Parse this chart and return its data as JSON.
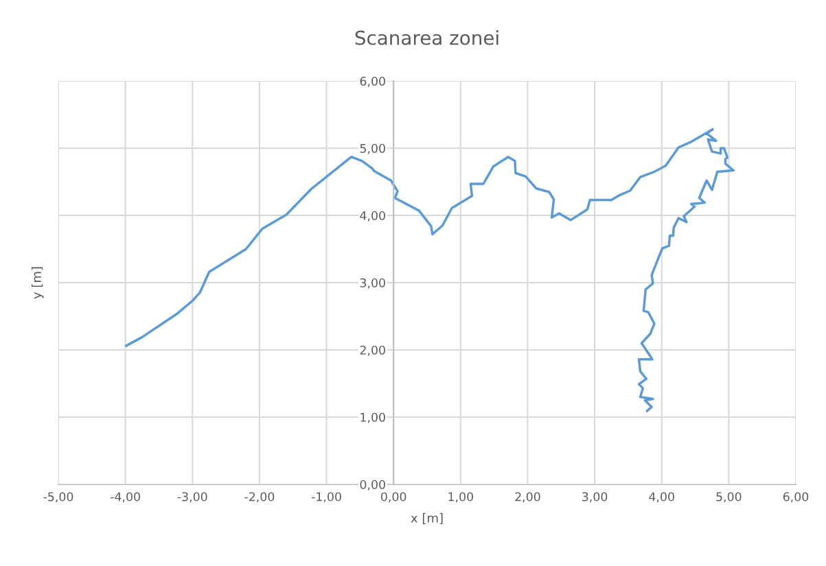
{
  "chart_data": {
    "type": "line",
    "title": "Scanarea zonei",
    "xlabel": "x [m]",
    "ylabel": "y [m]",
    "series": [
      {
        "color": "#5b9bd5",
        "x": [
          -3.99,
          -3.75,
          -3.24,
          -3.0,
          -2.89,
          -2.75,
          -2.2,
          -1.96,
          -1.6,
          -1.22,
          -0.63,
          -0.47,
          -0.32,
          -0.29,
          -0.04,
          0.06,
          0.02,
          0.38,
          0.56,
          0.58,
          0.73,
          0.87,
          1.17,
          1.15,
          1.34,
          1.49,
          1.71,
          1.81,
          1.82,
          1.97,
          2.13,
          2.32,
          2.39,
          2.36,
          2.47,
          2.64,
          2.89,
          2.93,
          3.25,
          3.37,
          3.53,
          3.68,
          3.89,
          4.06,
          4.25,
          4.43,
          4.76,
          4.67,
          4.81,
          4.69,
          4.75,
          4.88,
          4.88,
          4.93,
          4.98,
          4.95,
          4.95,
          5.07,
          4.86,
          4.83,
          4.75,
          4.67,
          4.56,
          4.64,
          4.44,
          4.49,
          4.33,
          4.37,
          4.25,
          4.18,
          4.17,
          4.12,
          4.11,
          4.01,
          3.96,
          3.85,
          3.87,
          3.76,
          3.73,
          3.8,
          3.89,
          3.83,
          3.7,
          3.86,
          3.66,
          3.68,
          3.77,
          3.66,
          3.72,
          3.68,
          3.87,
          3.75,
          3.85,
          3.78
        ],
        "values": [
          2.06,
          2.19,
          2.53,
          2.73,
          2.85,
          3.16,
          3.5,
          3.8,
          4.01,
          4.4,
          4.87,
          4.81,
          4.7,
          4.66,
          4.52,
          4.36,
          4.26,
          4.07,
          3.84,
          3.72,
          3.85,
          4.11,
          4.29,
          4.47,
          4.47,
          4.73,
          4.87,
          4.81,
          4.63,
          4.58,
          4.4,
          4.35,
          4.24,
          3.97,
          4.03,
          3.93,
          4.09,
          4.23,
          4.23,
          4.3,
          4.37,
          4.57,
          4.65,
          4.74,
          5.01,
          5.09,
          5.28,
          5.22,
          5.11,
          5.13,
          4.95,
          4.92,
          5.0,
          5.0,
          4.86,
          4.84,
          4.77,
          4.67,
          4.65,
          4.65,
          4.38,
          4.52,
          4.26,
          4.19,
          4.17,
          4.13,
          3.99,
          3.9,
          3.96,
          3.82,
          3.7,
          3.7,
          3.55,
          3.51,
          3.39,
          3.11,
          2.99,
          2.9,
          2.58,
          2.56,
          2.39,
          2.24,
          2.1,
          1.86,
          1.86,
          1.68,
          1.57,
          1.49,
          1.43,
          1.3,
          1.27,
          1.25,
          1.15,
          1.09
        ]
      }
    ],
    "xlim": [
      -5,
      6
    ],
    "xticks": [
      {
        "value": -5,
        "label": "-5,00"
      },
      {
        "value": -4,
        "label": "-4,00"
      },
      {
        "value": -3,
        "label": "-3,00"
      },
      {
        "value": -2,
        "label": "-2,00"
      },
      {
        "value": -1,
        "label": "-1,00"
      },
      {
        "value": 0,
        "label": "0,00"
      },
      {
        "value": 1,
        "label": "1,00"
      },
      {
        "value": 2,
        "label": "2,00"
      },
      {
        "value": 3,
        "label": "3,00"
      },
      {
        "value": 4,
        "label": "4,00"
      },
      {
        "value": 5,
        "label": "5,00"
      },
      {
        "value": 6,
        "label": "6,00"
      }
    ],
    "ylim": [
      0,
      6
    ],
    "yticks": [
      {
        "value": 0,
        "label": "0,00"
      },
      {
        "value": 1,
        "label": "1,00"
      },
      {
        "value": 2,
        "label": "2,00"
      },
      {
        "value": 3,
        "label": "3,00"
      },
      {
        "value": 4,
        "label": "4,00"
      },
      {
        "value": 5,
        "label": "5,00"
      },
      {
        "value": 6,
        "label": "6,00"
      }
    ],
    "grid": true,
    "legend": false,
    "marker": "none",
    "line_style": "solid"
  }
}
